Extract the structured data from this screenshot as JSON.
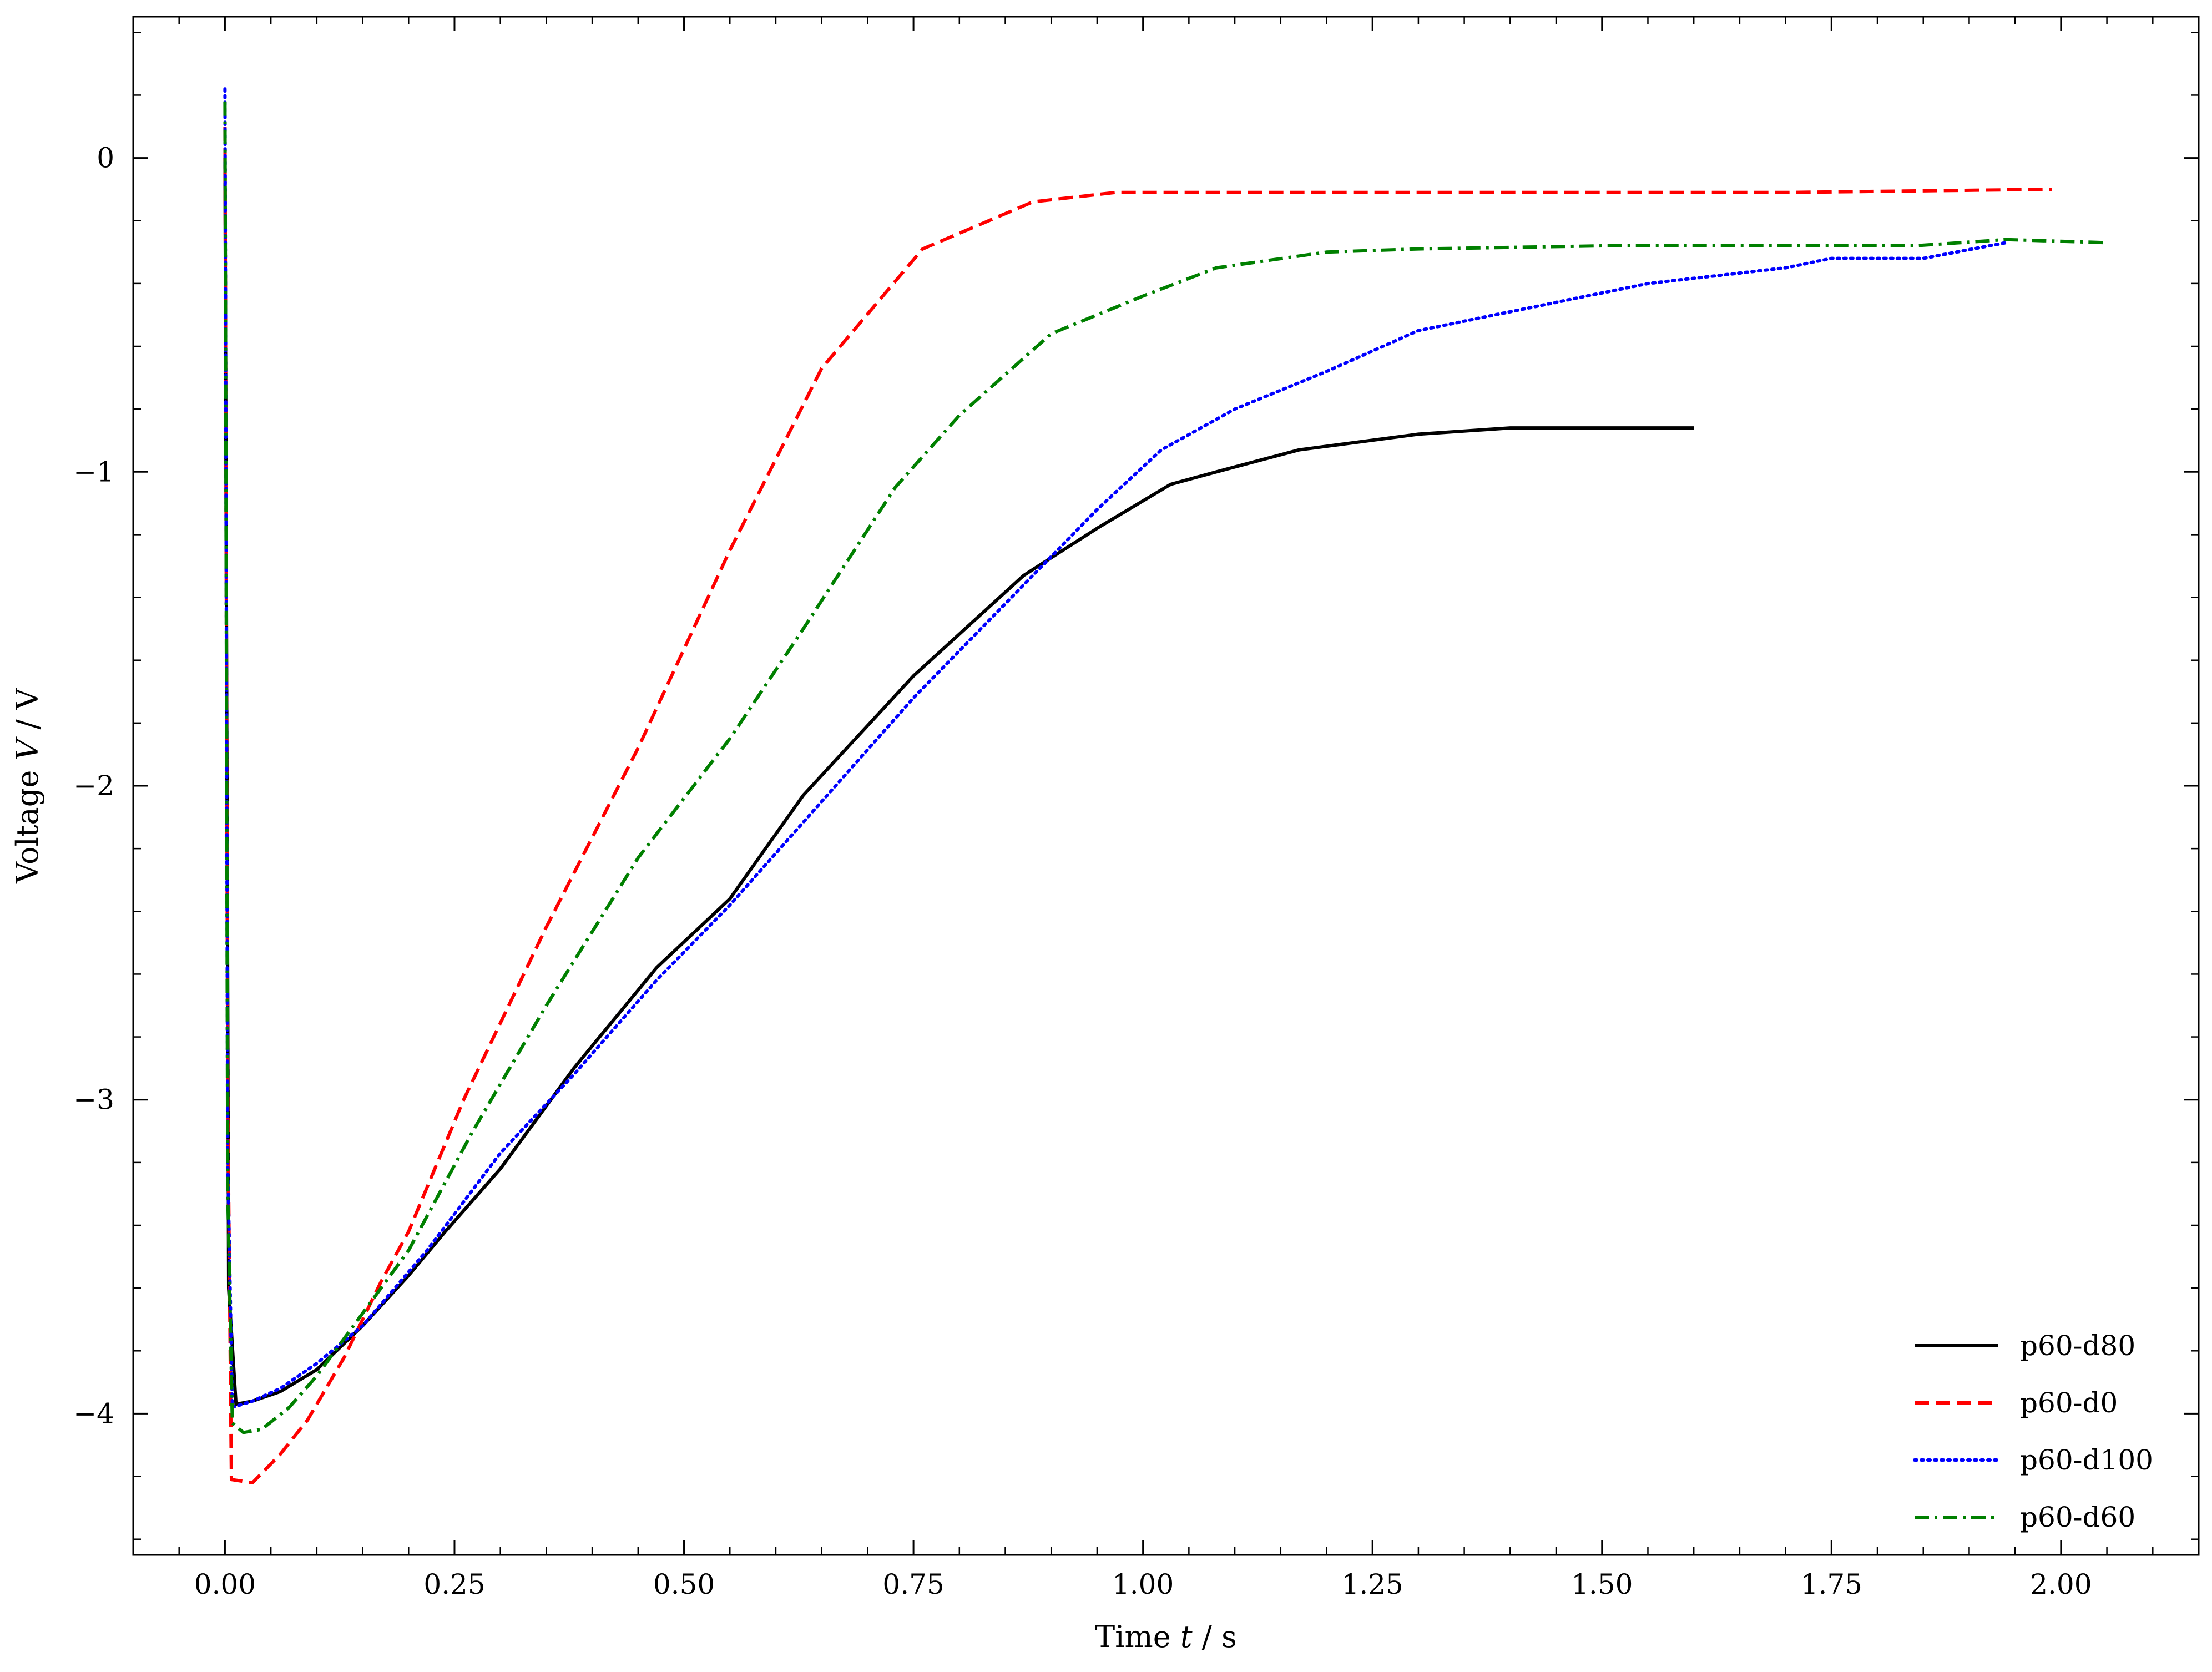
{
  "chart_data": {
    "type": "line",
    "title": "",
    "xlabel": {
      "prefix": "Time ",
      "var": "t",
      "suffix": " / s"
    },
    "ylabel": {
      "prefix": "Voltage ",
      "var": "V",
      "suffix": " / V"
    },
    "xlim": [
      -0.1,
      2.15
    ],
    "ylim": [
      -4.45,
      0.45
    ],
    "xticks": [
      {
        "v": 0.0,
        "label": "0.00"
      },
      {
        "v": 0.25,
        "label": "0.25"
      },
      {
        "v": 0.5,
        "label": "0.50"
      },
      {
        "v": 0.75,
        "label": "0.75"
      },
      {
        "v": 1.0,
        "label": "1.00"
      },
      {
        "v": 1.25,
        "label": "1.25"
      },
      {
        "v": 1.5,
        "label": "1.50"
      },
      {
        "v": 1.75,
        "label": "1.75"
      },
      {
        "v": 2.0,
        "label": "2.00"
      }
    ],
    "yticks": [
      {
        "v": 0,
        "label": "0"
      },
      {
        "v": -1,
        "label": "−1"
      },
      {
        "v": -2,
        "label": "−2"
      },
      {
        "v": -3,
        "label": "−3"
      },
      {
        "v": -4,
        "label": "−4"
      }
    ],
    "grid": false,
    "legend_position": "bottom-right",
    "series": [
      {
        "name": "p60-d80",
        "color": "#000000",
        "style": "solid",
        "points": [
          [
            0.0,
            0.0
          ],
          [
            0.004,
            -3.6
          ],
          [
            0.012,
            -3.97
          ],
          [
            0.03,
            -3.96
          ],
          [
            0.06,
            -3.93
          ],
          [
            0.1,
            -3.86
          ],
          [
            0.15,
            -3.72
          ],
          [
            0.2,
            -3.56
          ],
          [
            0.24,
            -3.42
          ],
          [
            0.3,
            -3.22
          ],
          [
            0.38,
            -2.9
          ],
          [
            0.47,
            -2.58
          ],
          [
            0.55,
            -2.36
          ],
          [
            0.63,
            -2.03
          ],
          [
            0.75,
            -1.65
          ],
          [
            0.87,
            -1.33
          ],
          [
            0.95,
            -1.18
          ],
          [
            1.03,
            -1.04
          ],
          [
            1.08,
            -1.0
          ],
          [
            1.17,
            -0.93
          ],
          [
            1.3,
            -0.88
          ],
          [
            1.4,
            -0.86
          ],
          [
            1.6,
            -0.86
          ]
        ]
      },
      {
        "name": "p60-d0",
        "color": "#ff0000",
        "style": "dashed",
        "points": [
          [
            0.0,
            0.1
          ],
          [
            0.003,
            -3.0
          ],
          [
            0.007,
            -4.21
          ],
          [
            0.03,
            -4.22
          ],
          [
            0.06,
            -4.13
          ],
          [
            0.09,
            -4.02
          ],
          [
            0.13,
            -3.82
          ],
          [
            0.17,
            -3.58
          ],
          [
            0.2,
            -3.42
          ],
          [
            0.26,
            -3.0
          ],
          [
            0.35,
            -2.45
          ],
          [
            0.45,
            -1.88
          ],
          [
            0.55,
            -1.25
          ],
          [
            0.65,
            -0.67
          ],
          [
            0.76,
            -0.29
          ],
          [
            0.88,
            -0.14
          ],
          [
            0.97,
            -0.11
          ],
          [
            1.2,
            -0.11
          ],
          [
            1.5,
            -0.11
          ],
          [
            1.7,
            -0.11
          ],
          [
            1.99,
            -0.1
          ]
        ]
      },
      {
        "name": "p60-d100",
        "color": "#0000ff",
        "style": "dotted",
        "points": [
          [
            0.0,
            0.22
          ],
          [
            0.003,
            -3.2
          ],
          [
            0.008,
            -3.98
          ],
          [
            0.03,
            -3.96
          ],
          [
            0.06,
            -3.92
          ],
          [
            0.1,
            -3.84
          ],
          [
            0.15,
            -3.72
          ],
          [
            0.22,
            -3.48
          ],
          [
            0.3,
            -3.17
          ],
          [
            0.38,
            -2.92
          ],
          [
            0.47,
            -2.62
          ],
          [
            0.55,
            -2.38
          ],
          [
            0.65,
            -2.05
          ],
          [
            0.75,
            -1.72
          ],
          [
            0.88,
            -1.33
          ],
          [
            0.95,
            -1.12
          ],
          [
            1.02,
            -0.93
          ],
          [
            1.1,
            -0.8
          ],
          [
            1.2,
            -0.68
          ],
          [
            1.3,
            -0.55
          ],
          [
            1.45,
            -0.46
          ],
          [
            1.55,
            -0.4
          ],
          [
            1.7,
            -0.35
          ],
          [
            1.75,
            -0.32
          ],
          [
            1.85,
            -0.32
          ],
          [
            1.94,
            -0.27
          ]
        ]
      },
      {
        "name": "p60-d60",
        "color": "#008000",
        "style": "dashdot",
        "points": [
          [
            0.0,
            0.18
          ],
          [
            0.003,
            -3.3
          ],
          [
            0.008,
            -4.03
          ],
          [
            0.02,
            -4.06
          ],
          [
            0.04,
            -4.05
          ],
          [
            0.07,
            -3.98
          ],
          [
            0.1,
            -3.88
          ],
          [
            0.15,
            -3.68
          ],
          [
            0.2,
            -3.48
          ],
          [
            0.27,
            -3.1
          ],
          [
            0.35,
            -2.7
          ],
          [
            0.45,
            -2.23
          ],
          [
            0.55,
            -1.85
          ],
          [
            0.63,
            -1.5
          ],
          [
            0.73,
            -1.05
          ],
          [
            0.8,
            -0.82
          ],
          [
            0.9,
            -0.56
          ],
          [
            1.0,
            -0.44
          ],
          [
            1.08,
            -0.35
          ],
          [
            1.2,
            -0.3
          ],
          [
            1.3,
            -0.29
          ],
          [
            1.5,
            -0.28
          ],
          [
            1.7,
            -0.28
          ],
          [
            1.84,
            -0.28
          ],
          [
            1.94,
            -0.26
          ],
          [
            2.05,
            -0.27
          ]
        ]
      }
    ]
  }
}
